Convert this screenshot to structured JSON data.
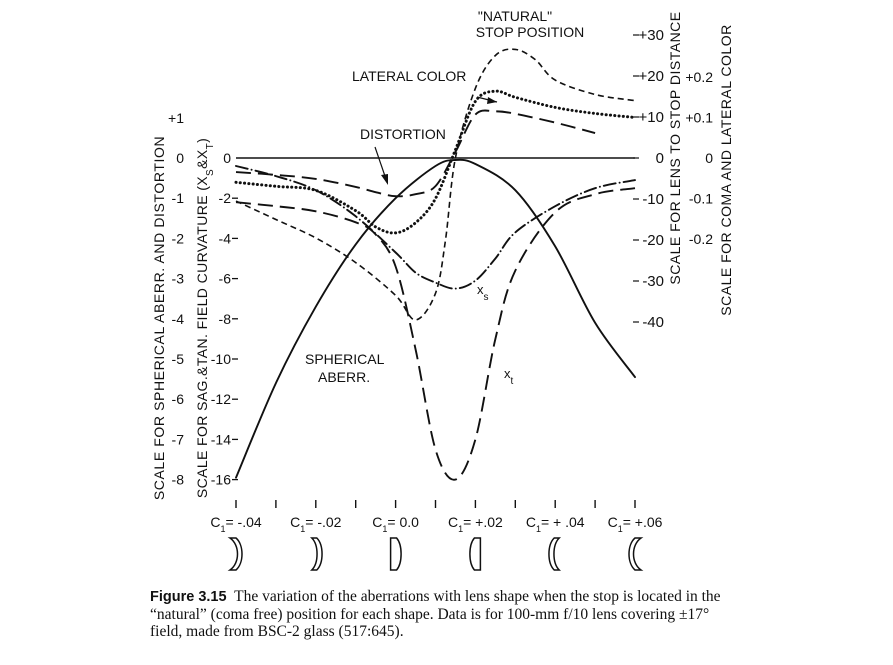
{
  "chart_data": {
    "type": "line",
    "x_label_prefix": "C₁",
    "x_categories": [
      "= -.04",
      "= -.02",
      "= 0.0",
      "= +.02",
      "= + .04",
      "= +.06"
    ],
    "x_values": [
      -0.04,
      -0.02,
      0.0,
      0.02,
      0.04,
      0.06
    ],
    "xlim": [
      -0.04,
      0.06
    ],
    "axes": {
      "spherical_distortion": {
        "title": "SCALE FOR SPHERICAL ABERR. AND DISTORTION",
        "ticks": [
          "+1",
          "0",
          "-1",
          "-2",
          "-3",
          "-4",
          "-5",
          "-6",
          "-7",
          "-8"
        ],
        "range": [
          -8,
          1
        ]
      },
      "field_curvature": {
        "title": "SCALE FOR SAG.&TAN. FIELD CURVATURE (X",
        "title_sub_s": "S",
        "title_mid": "&X",
        "title_sub_t": "T",
        "title_end": ")",
        "ticks": [
          "0",
          "-2",
          "-4",
          "-6",
          "-8",
          "-10",
          "-12",
          "-14",
          "-16"
        ],
        "range": [
          -16,
          2
        ]
      },
      "stop_distance": {
        "title": "SCALE FOR LENS TO STOP DISTANCE",
        "ticks": [
          "+30",
          "+20",
          "+10",
          "0",
          "-10",
          "-20",
          "-30",
          "-40"
        ],
        "range": [
          -40,
          30
        ]
      },
      "coma_lateral_color": {
        "title": "SCALE FOR COMA AND LATERAL COLOR",
        "ticks": [
          "+0.2",
          "+0.1",
          "0",
          "-0.1",
          "-0.2"
        ],
        "range": [
          -0.2,
          0.2
        ]
      }
    },
    "series": [
      {
        "name": "SPHERICAL ABERR.",
        "style": "solid",
        "axis": "spherical_distortion",
        "x": [
          -0.04,
          -0.03,
          -0.02,
          -0.01,
          0.0,
          0.01,
          0.015,
          0.02,
          0.03,
          0.04,
          0.05,
          0.06
        ],
        "y": [
          -7.95,
          -5.6,
          -3.7,
          -2.15,
          -1.0,
          -0.2,
          -0.05,
          -0.15,
          -0.8,
          -2.2,
          -4.1,
          -5.45
        ]
      },
      {
        "name": "DISTORTION",
        "style": "long-dash",
        "axis": "spherical_distortion",
        "x": [
          -0.04,
          -0.03,
          -0.02,
          -0.01,
          -0.005,
          0.0,
          0.005,
          0.01,
          0.015,
          0.02,
          0.025,
          0.03,
          0.04,
          0.05
        ],
        "y": [
          -0.35,
          -0.42,
          -0.52,
          -0.72,
          -0.85,
          -0.95,
          -0.9,
          -0.7,
          0.15,
          1.08,
          1.16,
          1.1,
          0.88,
          0.62
        ]
      },
      {
        "name": "LATERAL COLOR",
        "style": "dotted",
        "axis": "coma_lateral_color",
        "x": [
          -0.04,
          -0.03,
          -0.02,
          -0.01,
          -0.005,
          0.0,
          0.005,
          0.01,
          0.015,
          0.02,
          0.025,
          0.03,
          0.04,
          0.05,
          0.06
        ],
        "y": [
          -0.06,
          -0.07,
          -0.08,
          -0.13,
          -0.17,
          -0.185,
          -0.16,
          -0.1,
          0.02,
          0.14,
          0.165,
          0.15,
          0.125,
          0.11,
          0.1
        ]
      },
      {
        "name": "\"NATURAL\" STOP POSITION",
        "style": "short-dash",
        "axis": "stop_distance",
        "x": [
          -0.04,
          -0.03,
          -0.02,
          -0.01,
          0.0,
          0.005,
          0.01,
          0.0125,
          0.015,
          0.02,
          0.025,
          0.03,
          0.035,
          0.04,
          0.05,
          0.06
        ],
        "y": [
          -10.5,
          -15,
          -19.5,
          -25.5,
          -33.5,
          -39.5,
          -33,
          -20,
          0,
          17,
          25,
          26.5,
          24,
          19,
          15.5,
          14
        ]
      },
      {
        "name": "X_S",
        "style": "dash-dot",
        "axis": "field_curvature",
        "x": [
          -0.04,
          -0.03,
          -0.02,
          -0.01,
          0.0,
          0.005,
          0.01,
          0.015,
          0.02,
          0.025,
          0.03,
          0.04,
          0.05,
          0.06
        ],
        "y": [
          -0.4,
          -0.9,
          -1.6,
          -2.9,
          -4.7,
          -5.7,
          -6.2,
          -6.5,
          -6.1,
          -5.0,
          -3.7,
          -2.4,
          -1.5,
          -1.1
        ]
      },
      {
        "name": "X_T",
        "style": "long-dash",
        "axis": "field_curvature",
        "x": [
          -0.04,
          -0.03,
          -0.02,
          -0.01,
          -0.005,
          0.0,
          0.005,
          0.01,
          0.015,
          0.02,
          0.025,
          0.03,
          0.04,
          0.05,
          0.06
        ],
        "y": [
          -2.2,
          -2.4,
          -2.65,
          -3.2,
          -3.8,
          -5.4,
          -9.5,
          -14.5,
          -16.0,
          -14.0,
          -9.0,
          -5.6,
          -2.7,
          -1.8,
          -1.5
        ]
      }
    ],
    "annotations": {
      "natural_line1": "\"NATURAL\"",
      "natural_line2": "STOP POSITION",
      "lateral_color": "LATERAL COLOR",
      "distortion": "DISTORTION",
      "spherical_line1": "SPHERICAL",
      "spherical_line2": "ABERR.",
      "xs_main": "x",
      "xs_sub": "s",
      "xt_main": "x",
      "xt_sub": "t"
    },
    "lens_shapes": [
      "meniscus-concave-right",
      "meniscus-concave-right-weak",
      "plano-convex",
      "plano-convex-left",
      "meniscus-concave-left",
      "meniscus-concave-left-strong"
    ]
  },
  "caption": {
    "label": "Figure 3.15",
    "text": "The variation of the aberrations with lens shape when the stop is located in the “natural” (coma free) position for each shape. Data is for 100-mm f/10 lens covering ±17° field, made from BSC-2 glass (517:645)."
  }
}
